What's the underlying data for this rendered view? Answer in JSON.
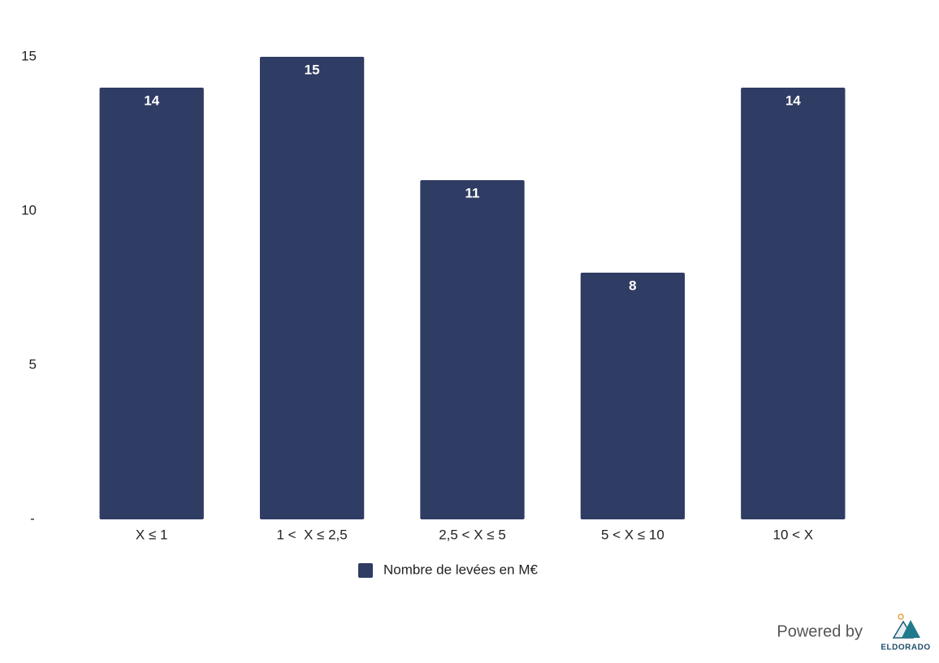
{
  "chart_data": {
    "type": "bar",
    "categories": [
      "X ≤ 1",
      "1 <  X ≤ 2,5",
      "2,5 < X ≤ 5",
      "5 < X ≤ 10",
      "10 < X"
    ],
    "series": [
      {
        "name": "Nombre de levées en M€",
        "color": "#2f3c63",
        "values": [
          14,
          15,
          11,
          8,
          14
        ]
      }
    ],
    "ylim": [
      0,
      15
    ],
    "yticks": [
      {
        "value": 0,
        "label": "-"
      },
      5,
      10,
      15
    ],
    "grid": false,
    "legend": "bottom"
  },
  "footer": {
    "text": "Powered by",
    "logo": "ELDORADO"
  }
}
